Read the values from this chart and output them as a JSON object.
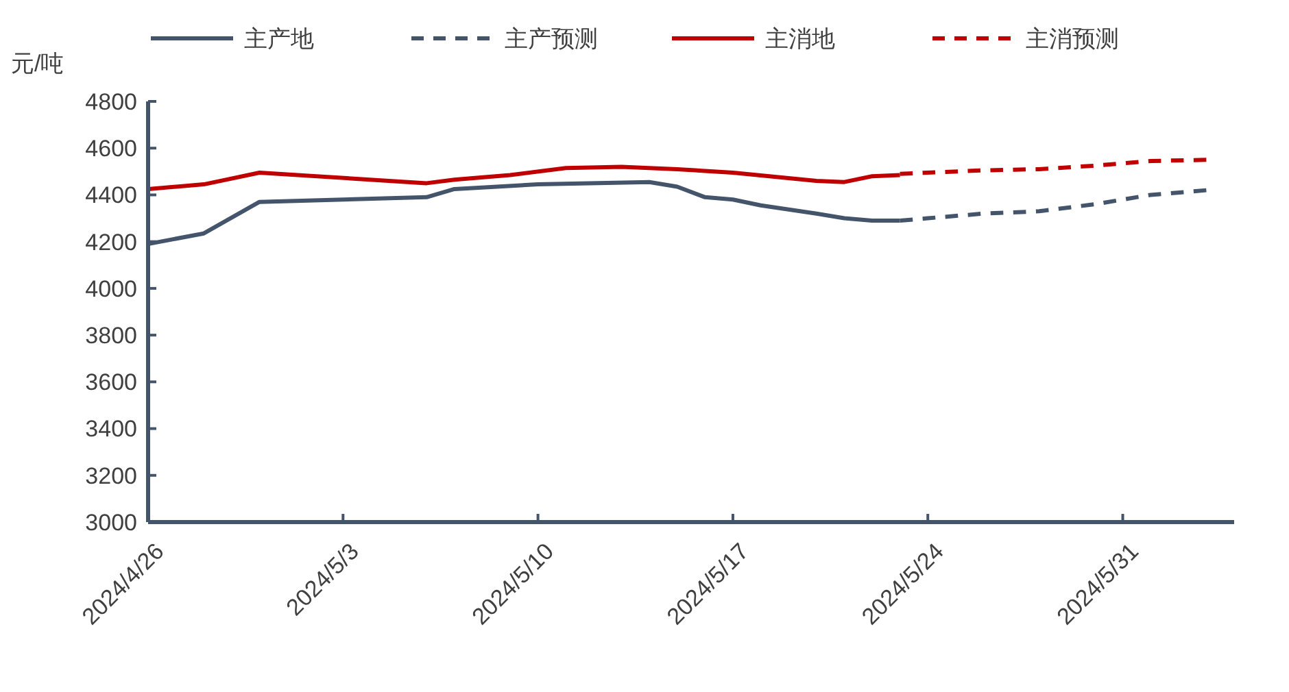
{
  "chart_data": {
    "type": "line",
    "ylabel": "元/吨",
    "legend": "top",
    "grid": false,
    "marker": "none",
    "xlim": [
      "2024-04-26",
      "2024-06-04"
    ],
    "xticks": [
      {
        "value": "2024-04-26",
        "label": "2024/4/26"
      },
      {
        "value": "2024-05-03",
        "label": "2024/5/3"
      },
      {
        "value": "2024-05-10",
        "label": "2024/5/10"
      },
      {
        "value": "2024-05-17",
        "label": "2024/5/17"
      },
      {
        "value": "2024-05-24",
        "label": "2024/5/24"
      },
      {
        "value": "2024-05-31",
        "label": "2024/5/31"
      }
    ],
    "ylim": [
      3000,
      4800
    ],
    "yticks": [
      3000,
      3200,
      3400,
      3600,
      3800,
      4000,
      4200,
      4400,
      4600,
      4800
    ],
    "series": [
      {
        "name": "主产地",
        "color": "#44546a",
        "line_style": "solid",
        "x": [
          "2024-04-26",
          "2024-04-28",
          "2024-04-30",
          "2024-05-06",
          "2024-05-07",
          "2024-05-10",
          "2024-05-14",
          "2024-05-15",
          "2024-05-16",
          "2024-05-17",
          "2024-05-18",
          "2024-05-20",
          "2024-05-21",
          "2024-05-22",
          "2024-05-23"
        ],
        "values": [
          4190,
          4235,
          4370,
          4390,
          4425,
          4445,
          4455,
          4435,
          4390,
          4380,
          4355,
          4320,
          4300,
          4290,
          4290
        ]
      },
      {
        "name": "主产预测",
        "color": "#44546a",
        "line_style": "dashed",
        "x": [
          "2024-05-23",
          "2024-05-24",
          "2024-05-26",
          "2024-05-28",
          "2024-05-30",
          "2024-06-01",
          "2024-06-03"
        ],
        "values": [
          4290,
          4300,
          4320,
          4330,
          4360,
          4400,
          4420
        ]
      },
      {
        "name": "主消地",
        "color": "#c00000",
        "line_style": "solid",
        "x": [
          "2024-04-26",
          "2024-04-28",
          "2024-04-30",
          "2024-05-06",
          "2024-05-07",
          "2024-05-09",
          "2024-05-11",
          "2024-05-13",
          "2024-05-15",
          "2024-05-17",
          "2024-05-20",
          "2024-05-21",
          "2024-05-22",
          "2024-05-23"
        ],
        "values": [
          4425,
          4445,
          4495,
          4450,
          4465,
          4485,
          4515,
          4520,
          4510,
          4495,
          4460,
          4455,
          4480,
          4485
        ]
      },
      {
        "name": "主消预测",
        "color": "#c00000",
        "line_style": "dashed",
        "x": [
          "2024-05-23",
          "2024-05-26",
          "2024-05-28",
          "2024-05-30",
          "2024-06-01",
          "2024-06-03"
        ],
        "values": [
          4490,
          4505,
          4510,
          4525,
          4545,
          4550
        ]
      }
    ]
  }
}
